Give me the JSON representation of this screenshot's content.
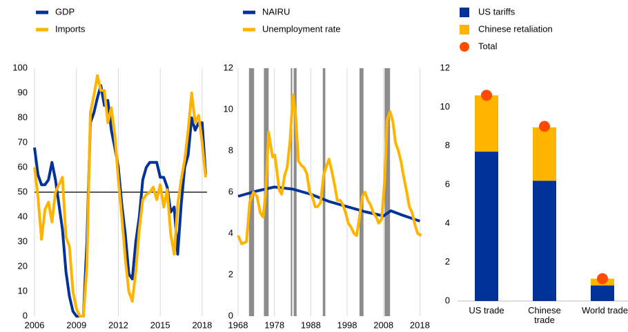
{
  "chart_data": [
    {
      "type": "line",
      "x": [
        2006,
        2006.25,
        2006.5,
        2006.75,
        2007,
        2007.25,
        2007.5,
        2007.75,
        2008,
        2008.25,
        2008.5,
        2008.75,
        2009,
        2009.25,
        2009.5,
        2009.75,
        2010,
        2010.25,
        2010.5,
        2010.75,
        2011,
        2011.25,
        2011.5,
        2011.75,
        2012,
        2012.25,
        2012.5,
        2012.75,
        2013,
        2013.25,
        2013.5,
        2013.75,
        2014,
        2014.25,
        2014.5,
        2014.75,
        2015,
        2015.25,
        2015.5,
        2015.75,
        2016,
        2016.25,
        2016.5,
        2016.75,
        2017,
        2017.25,
        2017.5,
        2017.75,
        2018,
        2018.25
      ],
      "series": [
        {
          "name": "GDP",
          "color": "#003299",
          "values": [
            68,
            57,
            53,
            53,
            55,
            62,
            55,
            45,
            35,
            18,
            8,
            2,
            0,
            0,
            0,
            30,
            78,
            82,
            88,
            93,
            85,
            87,
            75,
            68,
            60,
            45,
            33,
            17,
            15,
            30,
            40,
            55,
            60,
            62,
            62,
            62,
            56,
            56,
            52,
            42,
            44,
            25,
            45,
            60,
            65,
            80,
            75,
            78,
            78,
            57
          ]
        },
        {
          "name": "Imports",
          "color": "#ffb400",
          "values": [
            60,
            48,
            31,
            43,
            46,
            38,
            50,
            53,
            56,
            32,
            28,
            10,
            3,
            0,
            0,
            20,
            82,
            89,
            97,
            91,
            91,
            78,
            84,
            73,
            55,
            40,
            23,
            10,
            6,
            18,
            35,
            47,
            49,
            50,
            52,
            47,
            53,
            44,
            51,
            33,
            25,
            45,
            55,
            63,
            75,
            90,
            78,
            81,
            70,
            56
          ]
        }
      ],
      "reference_line": 50,
      "xlim": [
        2006,
        2018.35
      ],
      "xticks": [
        2006,
        2009,
        2012,
        2015,
        2018
      ],
      "ylim": [
        0,
        100
      ],
      "yticks": [
        0,
        10,
        20,
        30,
        40,
        50,
        60,
        70,
        80,
        90,
        100
      ],
      "grid": "x"
    },
    {
      "type": "line",
      "series": [
        {
          "name": "NAIRU",
          "color": "#003299",
          "x": [
            1968,
            1973,
            1978,
            1983,
            1988,
            1993,
            1998,
            2003,
            2008,
            2010,
            2013,
            2018
          ],
          "values": [
            5.8,
            6.05,
            6.25,
            6.15,
            5.9,
            5.55,
            5.3,
            5.05,
            4.85,
            5.1,
            4.9,
            4.6
          ]
        },
        {
          "name": "Unemployment rate",
          "color": "#ffb400",
          "x": [
            1968,
            1969,
            1970.3,
            1971.2,
            1972.2,
            1973.2,
            1974.1,
            1974.9,
            1975.6,
            1976.4,
            1977,
            1977.5,
            1978.1,
            1978.7,
            1979.3,
            1980,
            1980.8,
            1981.5,
            1982.3,
            1983.1,
            1983.8,
            1984.6,
            1985.4,
            1986.1,
            1986.9,
            1987.7,
            1988.4,
            1989.2,
            1989.9,
            1990.7,
            1991.5,
            1992.2,
            1993,
            1993.8,
            1994.5,
            1995.3,
            1996.1,
            1996.8,
            1997.6,
            1998.3,
            1999.1,
            1999.9,
            2000.6,
            2001.4,
            2002.2,
            2002.9,
            2003.7,
            2004.4,
            2005.2,
            2006,
            2006.7,
            2007.5,
            2008.3,
            2009,
            2009.8,
            2010.6,
            2011.3,
            2012.1,
            2012.8,
            2013.6,
            2014.4,
            2015.1,
            2015.9,
            2016.7,
            2017.4,
            2018.4
          ],
          "values": [
            3.9,
            3.5,
            3.6,
            5.5,
            6.0,
            5.8,
            5.0,
            4.8,
            6.0,
            8.9,
            8.2,
            7.7,
            7.8,
            7.0,
            6.1,
            5.9,
            6.8,
            7.2,
            8.5,
            10.7,
            9.8,
            7.5,
            7.3,
            7.2,
            6.9,
            6.0,
            5.8,
            5.3,
            5.3,
            5.5,
            6.8,
            7.2,
            7.6,
            7.0,
            6.4,
            5.6,
            5.6,
            5.4,
            5.0,
            4.5,
            4.3,
            4.0,
            3.9,
            4.8,
            5.8,
            6.0,
            5.6,
            5.4,
            5.0,
            4.8,
            4.5,
            4.7,
            6.5,
            9.5,
            9.9,
            9.4,
            8.4,
            8.0,
            7.5,
            6.7,
            6.0,
            5.3,
            5.0,
            4.4,
            4.0,
            3.9
          ]
        }
      ],
      "shaded_periods": [
        [
          1971.0,
          1972.4
        ],
        [
          1975.1,
          1976.4
        ],
        [
          1982.5,
          1982.9
        ],
        [
          1983.3,
          1984.1
        ],
        [
          1991.3,
          1992.0
        ],
        [
          2001.4,
          2002.5
        ],
        [
          2008.3,
          2009.8
        ]
      ],
      "shade_color": "#8c8c8c",
      "xlim": [
        1968,
        2018.5
      ],
      "xticks": [
        1968,
        1978,
        1988,
        1998,
        2008,
        2018
      ],
      "ylim": [
        0,
        12
      ],
      "yticks": [
        0,
        2,
        4,
        6,
        8,
        10,
        12
      ],
      "grid": "x"
    },
    {
      "type": "stacked_bar",
      "categories": [
        "US trade",
        "Chinese trade",
        "World trade"
      ],
      "series": [
        {
          "name": "US tariffs",
          "color": "#003299",
          "values": [
            7.7,
            6.2,
            0.8
          ]
        },
        {
          "name": "Chinese retaliation",
          "color": "#ffb400",
          "values": [
            2.9,
            2.75,
            0.35
          ]
        },
        {
          "name": "Total",
          "color": "#ff4b00",
          "marker": "dot",
          "values": [
            10.6,
            9.0,
            1.15
          ]
        }
      ],
      "ylim": [
        0,
        12
      ],
      "yticks": [
        0,
        2,
        4,
        6,
        8,
        10,
        12
      ]
    }
  ]
}
